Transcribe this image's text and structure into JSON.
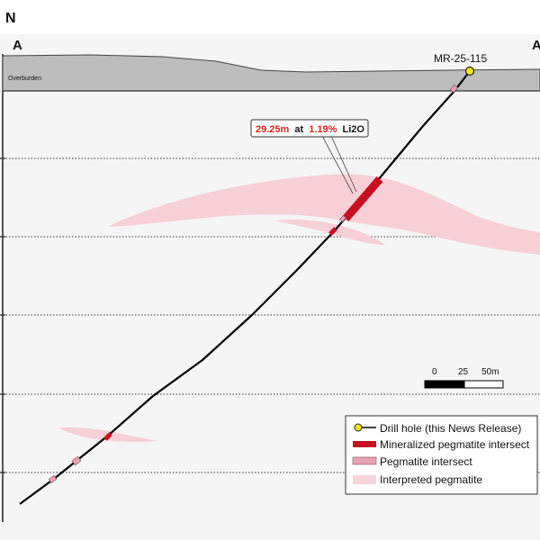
{
  "orientation": "N",
  "section": {
    "start_label": "A",
    "end_label": "A"
  },
  "overburden_label": "Overburden",
  "drill_hole": {
    "name": "MR-25-115",
    "collar_color": "#f5e600"
  },
  "callout": {
    "length": "29.25m",
    "at": "at",
    "grade": "1.19%",
    "element": "Li2O",
    "highlight_color": "#e0201f"
  },
  "scale_bar": {
    "ticks": [
      "0",
      "25",
      "50m"
    ]
  },
  "legend": {
    "items": [
      {
        "label": "Drill hole (this News Release)",
        "icon": "drill-hole-icon"
      },
      {
        "label": "Mineralized pegmatite intersect",
        "icon": "mineralized-intersect-icon",
        "color": "#c8101e"
      },
      {
        "label": "Pegmatite intersect",
        "icon": "pegmatite-intersect-icon",
        "color": "#e8a3b3"
      },
      {
        "label": "Interpreted pegmatite",
        "icon": "interpreted-pegmatite-icon",
        "color": "#f7d3dc"
      }
    ]
  },
  "colors": {
    "overburden": "#bdbdbd",
    "section_bg": "#f5f5f5",
    "pegmatite_fill": "#f7cfd7",
    "mineralized": "#c8101e",
    "pegmatite_small": "#e8a3b3"
  }
}
